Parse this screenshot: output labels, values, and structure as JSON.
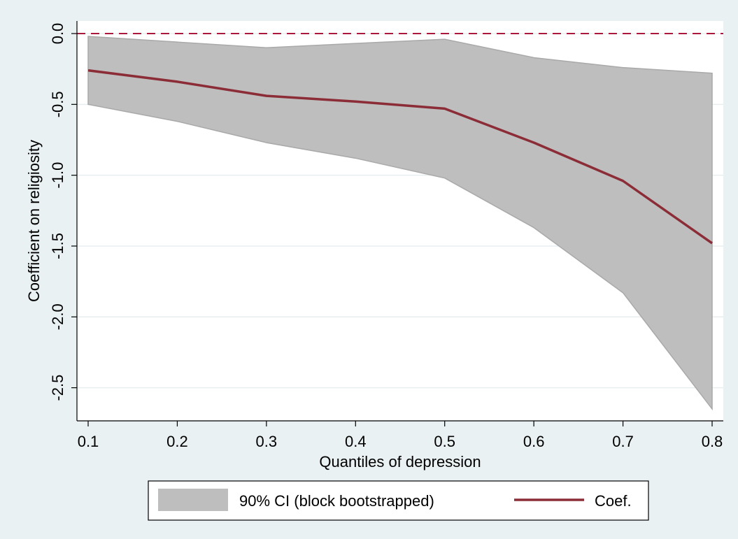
{
  "chart_data": {
    "type": "area",
    "xlabel": "Quantiles of depression",
    "ylabel": "Coefficient on religiosity",
    "xlim": [
      0.1,
      0.8
    ],
    "ylim": [
      -2.65,
      0.0
    ],
    "x_ticks": [
      "0.1",
      "0.2",
      "0.3",
      "0.4",
      "0.5",
      "0.6",
      "0.7",
      "0.8"
    ],
    "y_ticks": [
      "0.0",
      "-0.5",
      "-1.0",
      "-1.5",
      "-2.0",
      "-2.5"
    ],
    "grid": true,
    "reference_line": {
      "y": 0,
      "style": "dashed"
    },
    "x": [
      0.1,
      0.2,
      0.3,
      0.4,
      0.5,
      0.6,
      0.7,
      0.8
    ],
    "series": [
      {
        "name": "90% CI (block bootstrapped)",
        "kind": "band",
        "upper": [
          -0.02,
          -0.06,
          -0.1,
          -0.07,
          -0.04,
          -0.17,
          -0.24,
          -0.28
        ],
        "lower": [
          -0.5,
          -0.62,
          -0.77,
          -0.88,
          -1.02,
          -1.37,
          -1.83,
          -2.65
        ]
      },
      {
        "name": "Coef.",
        "kind": "line",
        "values": [
          -0.26,
          -0.34,
          -0.44,
          -0.48,
          -0.53,
          -0.77,
          -1.04,
          -1.48
        ]
      }
    ],
    "legend": {
      "position": "bottom",
      "entries": [
        "90% CI (block bootstrapped)",
        "Coef."
      ]
    },
    "colors": {
      "background": "#eaf1f3",
      "plot_background": "#ffffff",
      "band": "#bebebe",
      "line": "#8b2c36",
      "reference": "#a8193c",
      "grid": "#e8eef0"
    }
  }
}
